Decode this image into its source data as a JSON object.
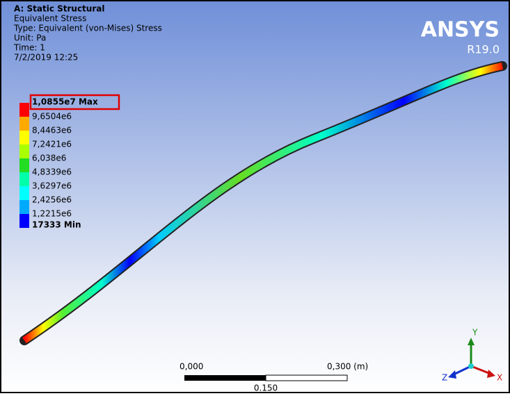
{
  "header": {
    "analysis": "A: Static Structural",
    "result": "Equivalent Stress",
    "type": "Type: Equivalent (von-Mises) Stress",
    "unit": "Unit: Pa",
    "time": "Time: 1",
    "date": "7/2/2019 12:25"
  },
  "logo": {
    "brand": "ANSYS",
    "release": "R19.0"
  },
  "legend": {
    "labels": [
      "1,0855e7 Max",
      "9,6504e6",
      "8,4463e6",
      "7,2421e6",
      "6,038e6",
      "4,8339e6",
      "3,6297e6",
      "2,4256e6",
      "1,2215e6",
      "17333 Min"
    ],
    "colors": [
      "#ff0000",
      "#ffaa00",
      "#ffff00",
      "#aaff00",
      "#22dd22",
      "#00ffaa",
      "#00ffff",
      "#00aaff",
      "#0000ff"
    ]
  },
  "scale_bar": {
    "left": "0,000",
    "right": "0,300 (m)",
    "middle": "0.150"
  },
  "triad": {
    "y": "Y",
    "z": "Z",
    "x": "X"
  }
}
